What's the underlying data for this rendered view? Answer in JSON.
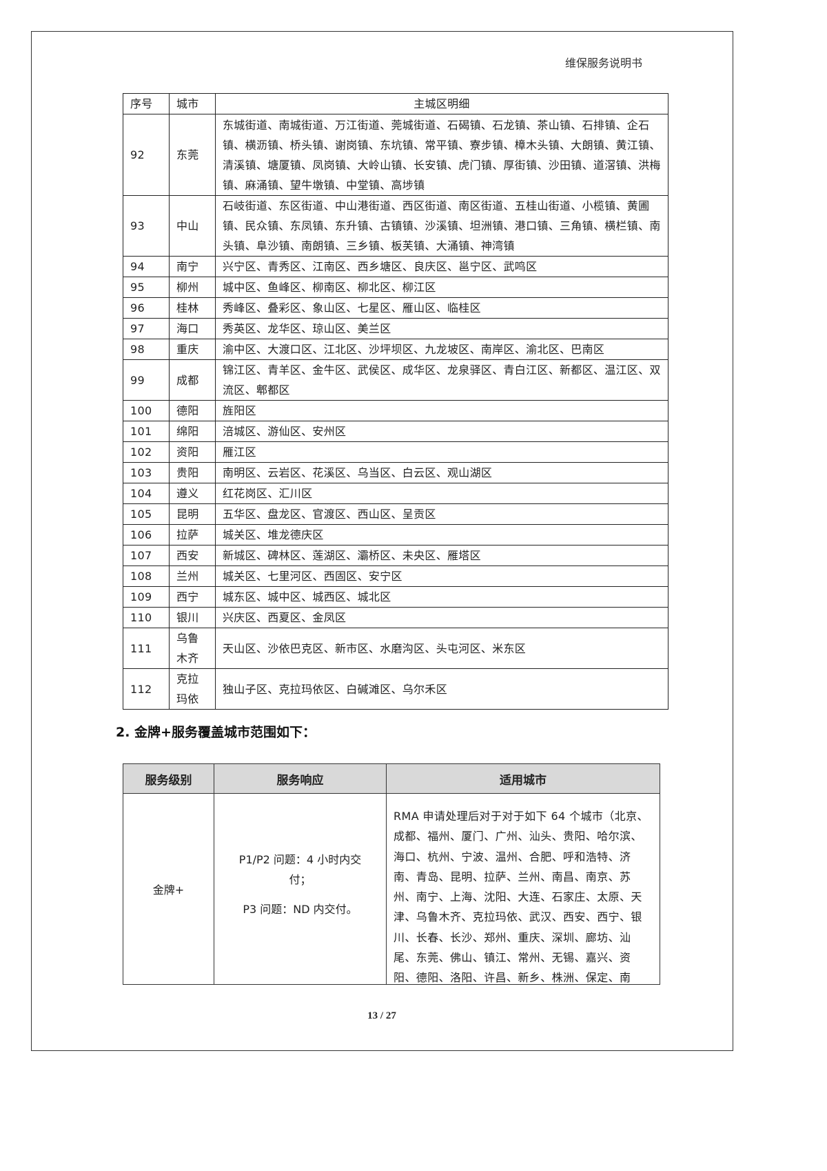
{
  "header": {
    "title": "维保服务说明书"
  },
  "table1": {
    "columns": [
      "序号",
      "城市",
      "主城区明细"
    ],
    "rows": [
      [
        "92",
        "东莞",
        "东城街道、南城街道、万江街道、莞城街道、石碣镇、石龙镇、茶山镇、石排镇、企石镇、横沥镇、桥头镇、谢岗镇、东坑镇、常平镇、寮步镇、樟木头镇、大朗镇、黄江镇、清溪镇、塘厦镇、凤岗镇、大岭山镇、长安镇、虎门镇、厚街镇、沙田镇、道滘镇、洪梅镇、麻涌镇、望牛墩镇、中堂镇、高埗镇"
      ],
      [
        "93",
        "中山",
        "石岐街道、东区街道、中山港街道、西区街道、南区街道、五桂山街道、小榄镇、黄圃镇、民众镇、东凤镇、东升镇、古镇镇、沙溪镇、坦洲镇、港口镇、三角镇、横栏镇、南头镇、阜沙镇、南朗镇、三乡镇、板芙镇、大涌镇、神湾镇"
      ],
      [
        "94",
        "南宁",
        "兴宁区、青秀区、江南区、西乡塘区、良庆区、邕宁区、武鸣区"
      ],
      [
        "95",
        "柳州",
        "城中区、鱼峰区、柳南区、柳北区、柳江区"
      ],
      [
        "96",
        "桂林",
        "秀峰区、叠彩区、象山区、七星区、雁山区、临桂区"
      ],
      [
        "97",
        "海口",
        "秀英区、龙华区、琼山区、美兰区"
      ],
      [
        "98",
        "重庆",
        "渝中区、大渡口区、江北区、沙坪坝区、九龙坡区、南岸区、渝北区、巴南区"
      ],
      [
        "99",
        "成都",
        "锦江区、青羊区、金牛区、武侯区、成华区、龙泉驿区、青白江区、新都区、温江区、双流区、郫都区"
      ],
      [
        "100",
        "德阳",
        "旌阳区"
      ],
      [
        "101",
        "绵阳",
        "涪城区、游仙区、安州区"
      ],
      [
        "102",
        "资阳",
        "雁江区"
      ],
      [
        "103",
        "贵阳",
        "南明区、云岩区、花溪区、乌当区、白云区、观山湖区"
      ],
      [
        "104",
        "遵义",
        "红花岗区、汇川区"
      ],
      [
        "105",
        "昆明",
        "五华区、盘龙区、官渡区、西山区、呈贡区"
      ],
      [
        "106",
        "拉萨",
        "城关区、堆龙德庆区"
      ],
      [
        "107",
        "西安",
        "新城区、碑林区、莲湖区、灞桥区、未央区、雁塔区"
      ],
      [
        "108",
        "兰州",
        "城关区、七里河区、西固区、安宁区"
      ],
      [
        "109",
        "西宁",
        "城东区、城中区、城西区、城北区"
      ],
      [
        "110",
        "银川",
        "兴庆区、西夏区、金凤区"
      ],
      [
        "111",
        "乌鲁木齐",
        "天山区、沙依巴克区、新市区、水磨沟区、头屯河区、米东区"
      ],
      [
        "112",
        "克拉玛依",
        "独山子区、克拉玛依区、白碱滩区、乌尔禾区"
      ]
    ]
  },
  "section2": {
    "heading": "2. 金牌+服务覆盖城市范围如下："
  },
  "table2": {
    "columns": [
      "服务级别",
      "服务响应",
      "适用城市"
    ],
    "header_bg": "#d9d9d9",
    "row": {
      "level": "金牌+",
      "response": [
        "P1/P2 问题：4 小时内交付；",
        "P3 问题：ND 内交付。"
      ],
      "cities": "RMA 申请处理后对于对于如下 64 个城市（北京、成都、福州、厦门、广州、汕头、贵阳、哈尔滨、海口、杭州、宁波、温州、合肥、呼和浩特、济南、青岛、昆明、拉萨、兰州、南昌、南京、苏州、南宁、上海、沈阳、大连、石家庄、太原、天津、乌鲁木齐、克拉玛依、武汉、西安、西宁、银川、长春、长沙、郑州、重庆、深圳、廊坊、汕尾、东莞、佛山、镇江、常州、无锡、嘉兴、资阳、德阳、洛阳、许昌、新乡、株洲、保定、南通、扬州、惠州、中山、珠海、江门、"
    }
  },
  "footer": {
    "page": "13",
    "sep": "/",
    "total": "27"
  }
}
